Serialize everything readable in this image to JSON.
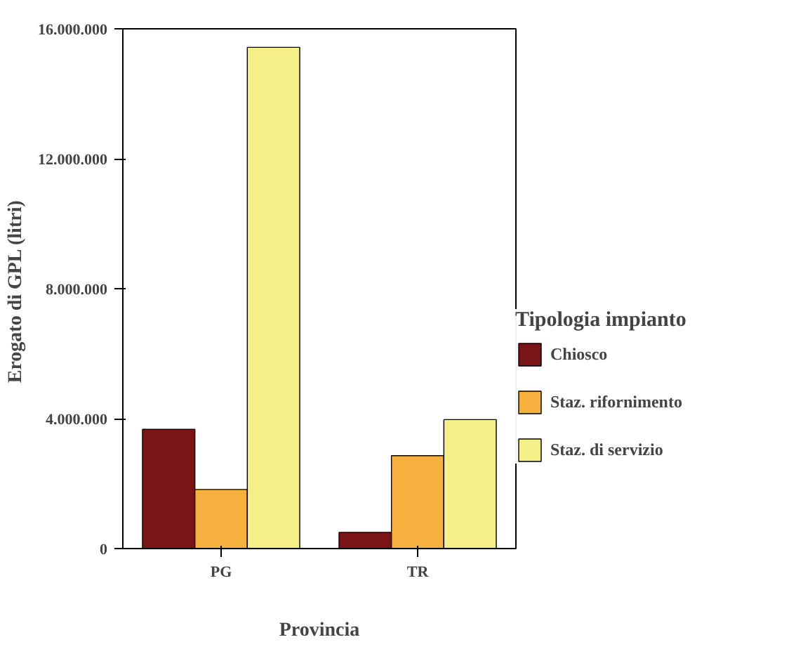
{
  "chart_data": {
    "type": "bar",
    "categories": [
      "PG",
      "TR"
    ],
    "series": [
      {
        "name": "Chiosco",
        "color": "#7b1416",
        "values": [
          3670000,
          500000
        ]
      },
      {
        "name": "Staz. rifornimento",
        "color": "#f5b03d",
        "values": [
          1820000,
          2860000
        ]
      },
      {
        "name": "Staz. di servizio",
        "color": "#f5ef88",
        "values": [
          15430000,
          3970000
        ]
      }
    ],
    "xlabel": "Provincia",
    "ylabel": "Erogato di GPL  (litri)",
    "legend_title": "Tipologia impianto",
    "ylim": [
      0,
      16000000
    ],
    "yticks": [
      {
        "value": 0,
        "label": "0"
      },
      {
        "value": 4000000,
        "label": "4.000.000"
      },
      {
        "value": 8000000,
        "label": "8.000.000"
      },
      {
        "value": 12000000,
        "label": "12.000.000"
      },
      {
        "value": 16000000,
        "label": "16.000.000"
      }
    ],
    "grid": false,
    "legend": "right"
  }
}
